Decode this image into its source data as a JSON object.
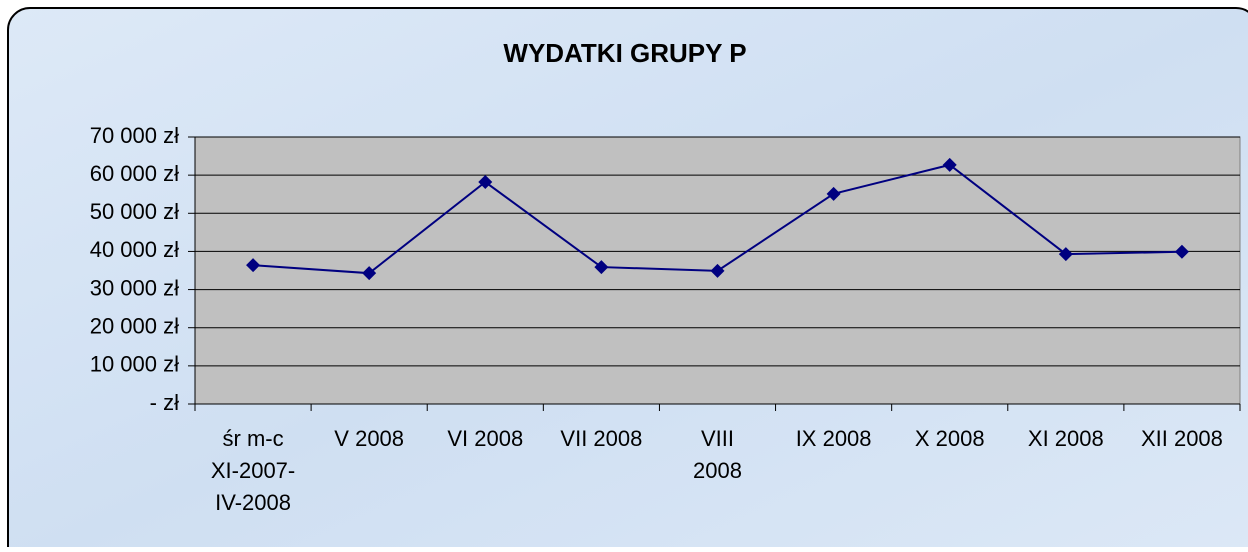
{
  "chart_data": {
    "type": "line",
    "title": "WYDATKI GRUPY P",
    "categories": [
      "śr m-c\nXI-2007-\nIV-2008",
      "V 2008",
      "VI 2008",
      "VII 2008",
      "VIII\n2008",
      "IX 2008",
      "X 2008",
      "XI 2008",
      "XII 2008"
    ],
    "series": [
      {
        "name": "WYDATKI GRUPY P",
        "color": "#000080",
        "values": [
          36400,
          34300,
          58200,
          35900,
          34900,
          55100,
          62700,
          39300,
          39900
        ]
      }
    ],
    "ylim": [
      0,
      70000
    ],
    "yticks": [
      {
        "value": 0,
        "label": "- zł"
      },
      {
        "value": 10000,
        "label": "10 000 zł"
      },
      {
        "value": 20000,
        "label": "20 000 zł"
      },
      {
        "value": 30000,
        "label": "30 000 zł"
      },
      {
        "value": 40000,
        "label": "40 000 zł"
      },
      {
        "value": 50000,
        "label": "50 000 zł"
      },
      {
        "value": 60000,
        "label": "60 000 zł"
      },
      {
        "value": 70000,
        "label": "70 000 zł"
      }
    ],
    "grid": true,
    "plot_background": "#c0c0c0"
  }
}
